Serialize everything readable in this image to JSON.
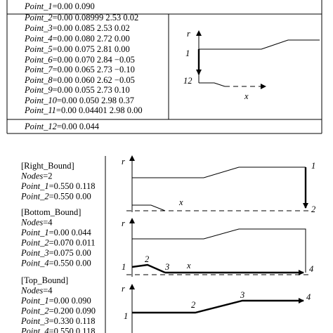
{
  "top": {
    "rows": [
      {
        "name": "Point_1",
        "coords": "=0.00 0.090"
      },
      {
        "name": "Point_2",
        "coords": "=0.00 0.08999 2.53 0.02"
      },
      {
        "name": "Point_3",
        "coords": "=0.00 0.085 2.53 0.02"
      },
      {
        "name": "Point_4",
        "coords": "=0.00 0.080 2.72 0.00"
      },
      {
        "name": "Point_5",
        "coords": "=0.00 0.075 2.81 0.00"
      },
      {
        "name": "Point_6",
        "coords": "=0.00 0.070 2.84 −0.05"
      },
      {
        "name": "Point_7",
        "coords": "=0.00 0.065 2.73 −0.10"
      },
      {
        "name": "Point_8",
        "coords": "=0.00 0.060 2.62 −0.05"
      },
      {
        "name": "Point_9",
        "coords": "=0.00 0.055 2.73 0.10"
      },
      {
        "name": "Point_10",
        "coords": "=0.00 0.050 2.98 0.37"
      },
      {
        "name": "Point_11",
        "coords": "=0.00 0.04401 2.98 0.00"
      },
      {
        "name": "Point_12",
        "coords": "=0.00 0.044"
      }
    ],
    "diagram_labels": [
      "r",
      "1",
      "12",
      "x"
    ]
  },
  "sections": [
    {
      "header": "[Right_Bound]",
      "nodes_name": "Nodes",
      "nodes_value": "=2",
      "rows": [
        {
          "name": "Point_1",
          "coords": "=0.550 0.118"
        },
        {
          "name": "Point_2",
          "coords": "=0.550 0.00"
        }
      ],
      "diagram_labels": [
        "r",
        "x",
        "1",
        "2"
      ]
    },
    {
      "header": "[Bottom_Bound]",
      "nodes_name": "Nodes",
      "nodes_value": "=4",
      "rows": [
        {
          "name": "Point_1",
          "coords": "=0.00 0.044"
        },
        {
          "name": "Point_2",
          "coords": "=0.070 0.011"
        },
        {
          "name": "Point_3",
          "coords": "=0.075 0.00"
        },
        {
          "name": "Point_4",
          "coords": "=0.550 0.00"
        }
      ],
      "diagram_labels": [
        "r",
        "1",
        "2",
        "3",
        "x",
        "4"
      ]
    },
    {
      "header": "[Top_Bound]",
      "nodes_name": "Nodes",
      "nodes_value": "=4",
      "rows": [
        {
          "name": "Point_1",
          "coords": "=0.00 0.090"
        },
        {
          "name": "Point_2",
          "coords": "=0.200 0.090"
        },
        {
          "name": "Point_3",
          "coords": "=0.330 0.118"
        },
        {
          "name": "Point_4",
          "coords": "=0.550 0.118"
        }
      ],
      "diagram_labels": [
        "r",
        "1",
        "2",
        "3",
        "4"
      ]
    }
  ]
}
